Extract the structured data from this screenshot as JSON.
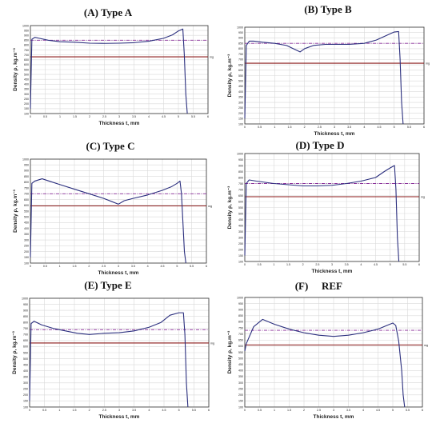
{
  "colors": {
    "profile": "#2b2f7e",
    "mean": "#8a2f9a",
    "reference": "#8b1a1a",
    "grid": "#d9d9d9",
    "frame": "#444444"
  },
  "chart_data": [
    {
      "type": "line",
      "title": "(A) Type A",
      "xlabel": "Thickness t, mm",
      "ylabel": "Density ρ, kg.m⁻³",
      "xlim": [
        0,
        6
      ],
      "ylim": [
        100,
        1000
      ],
      "x_ticks": [
        "0",
        "0.5",
        "1",
        "1.5",
        "2",
        "2.5",
        "3",
        "3.5",
        "4",
        "4.5",
        "5",
        "5.5",
        "6"
      ],
      "y_ticks": [
        "100",
        "150",
        "200",
        "250",
        "300",
        "350",
        "400",
        "450",
        "500",
        "550",
        "600",
        "650",
        "700",
        "750",
        "800",
        "850",
        "900",
        "950",
        "1000"
      ],
      "mean_line": 850,
      "reference_line": 680,
      "reference_label": "mg",
      "series": [
        {
          "x": [
            0,
            0.05,
            0.15,
            0.3,
            0.6,
            1.0,
            1.5,
            2.0,
            2.5,
            3.0,
            3.5,
            4.0,
            4.5,
            4.8,
            5.0,
            5.15,
            5.2,
            5.25,
            5.3
          ],
          "y": [
            150,
            860,
            880,
            870,
            850,
            835,
            830,
            820,
            818,
            820,
            825,
            840,
            870,
            905,
            945,
            965,
            700,
            300,
            100
          ]
        }
      ]
    },
    {
      "type": "line",
      "title": "(B) Type B",
      "xlabel": "Thickness t, mm",
      "ylabel": "Density ρ, kg.m⁻³",
      "xlim": [
        0,
        6
      ],
      "ylim": [
        100,
        1000
      ],
      "x_ticks": [
        "0",
        "0.5",
        "1",
        "1.5",
        "2",
        "2.5",
        "3",
        "3.5",
        "4",
        "4.5",
        "5",
        "5.5",
        "6"
      ],
      "y_ticks": [
        "100",
        "150",
        "200",
        "250",
        "300",
        "350",
        "400",
        "450",
        "500",
        "550",
        "600",
        "650",
        "700",
        "750",
        "800",
        "850",
        "900",
        "950",
        "1000"
      ],
      "mean_line": 850,
      "reference_line": 665,
      "reference_label": "mg",
      "series": [
        {
          "x": [
            0,
            0.05,
            0.15,
            0.3,
            0.6,
            1.0,
            1.4,
            1.7,
            1.85,
            2.0,
            2.3,
            2.7,
            3.0,
            3.5,
            4.0,
            4.4,
            4.8,
            5.0,
            5.15,
            5.2,
            5.25,
            5.3
          ],
          "y": [
            150,
            830,
            870,
            870,
            860,
            850,
            830,
            790,
            770,
            800,
            830,
            840,
            840,
            840,
            850,
            880,
            930,
            955,
            960,
            700,
            300,
            100
          ]
        }
      ]
    },
    {
      "type": "line",
      "title": "(C) Type C",
      "xlabel": "Thickness t, mm",
      "ylabel": "Density ρ, kg.m⁻³",
      "xlim": [
        0,
        6
      ],
      "ylim": [
        100,
        1000
      ],
      "x_ticks": [
        "0",
        "0.5",
        "1",
        "1.5",
        "2",
        "2.5",
        "3",
        "3.5",
        "4",
        "4.5",
        "5",
        "5.5",
        "6"
      ],
      "y_ticks": [
        "100",
        "150",
        "200",
        "250",
        "300",
        "350",
        "400",
        "450",
        "500",
        "550",
        "600",
        "650",
        "700",
        "750",
        "800",
        "850",
        "900",
        "950",
        "1000"
      ],
      "mean_line": 700,
      "reference_line": 595,
      "reference_label": "mg",
      "series": [
        {
          "x": [
            0,
            0.05,
            0.15,
            0.4,
            0.7,
            1.0,
            1.5,
            2.0,
            2.5,
            2.8,
            3.0,
            3.2,
            3.5,
            4.0,
            4.5,
            4.8,
            5.0,
            5.1,
            5.15,
            5.2,
            5.25,
            5.3
          ],
          "y": [
            150,
            790,
            810,
            830,
            805,
            780,
            740,
            700,
            660,
            630,
            610,
            640,
            660,
            690,
            730,
            760,
            790,
            810,
            700,
            450,
            200,
            100
          ]
        }
      ]
    },
    {
      "type": "line",
      "title": "(D) Type D",
      "xlabel": "Thickness t, mm",
      "ylabel": "Density ρ, kg.m⁻³",
      "xlim": [
        0,
        6
      ],
      "ylim": [
        100,
        1000
      ],
      "x_ticks": [
        "0",
        "0.5",
        "1",
        "1.5",
        "2",
        "2.5",
        "3",
        "3.5",
        "4",
        "4.5",
        "5",
        "5.5",
        "6"
      ],
      "y_ticks": [
        "100",
        "150",
        "200",
        "250",
        "300",
        "350",
        "400",
        "450",
        "500",
        "550",
        "600",
        "650",
        "700",
        "750",
        "800",
        "850",
        "900",
        "950",
        "1000"
      ],
      "mean_line": 750,
      "reference_line": 640,
      "reference_label": "mg",
      "series": [
        {
          "x": [
            0,
            0.05,
            0.15,
            0.4,
            1.0,
            1.5,
            2.0,
            2.5,
            3.0,
            3.5,
            4.0,
            4.5,
            4.8,
            5.0,
            5.15,
            5.2,
            5.25,
            5.3
          ],
          "y": [
            150,
            750,
            780,
            770,
            750,
            740,
            730,
            730,
            735,
            750,
            770,
            800,
            850,
            880,
            900,
            700,
            300,
            100
          ]
        }
      ]
    },
    {
      "type": "line",
      "title": "(E) Type E",
      "xlabel": "Thickness t, mm",
      "ylabel": "Density ρ, kg.m⁻³",
      "xlim": [
        0,
        6
      ],
      "ylim": [
        100,
        1000
      ],
      "x_ticks": [
        "0",
        "0.5",
        "1",
        "1.5",
        "2",
        "2.5",
        "3",
        "3.5",
        "4",
        "4.5",
        "5",
        "5.5",
        "6"
      ],
      "y_ticks": [
        "100",
        "150",
        "200",
        "250",
        "300",
        "350",
        "400",
        "450",
        "500",
        "550",
        "600",
        "650",
        "700",
        "750",
        "800",
        "850",
        "900",
        "950",
        "1000"
      ],
      "mean_line": 740,
      "reference_line": 630,
      "reference_label": "mg",
      "series": [
        {
          "x": [
            0,
            0.05,
            0.15,
            0.4,
            0.8,
            1.2,
            1.6,
            2.0,
            2.5,
            3.0,
            3.5,
            4.0,
            4.4,
            4.7,
            5.0,
            5.15,
            5.2,
            5.25,
            5.3
          ],
          "y": [
            150,
            790,
            810,
            780,
            750,
            730,
            710,
            700,
            710,
            715,
            730,
            760,
            800,
            860,
            880,
            880,
            700,
            300,
            100
          ]
        }
      ]
    },
    {
      "type": "line",
      "title": "REF",
      "panel_label": "(F)",
      "xlabel": "Thickness t, mm",
      "ylabel": "Density ρ, kg.m⁻³",
      "xlim": [
        0,
        6
      ],
      "ylim": [
        100,
        1000
      ],
      "x_ticks": [
        "0",
        "0.5",
        "1",
        "1.5",
        "2",
        "2.5",
        "3",
        "3.5",
        "4",
        "4.5",
        "5",
        "5.5",
        "6"
      ],
      "y_ticks": [
        "100",
        "150",
        "200",
        "250",
        "300",
        "350",
        "400",
        "450",
        "500",
        "550",
        "600",
        "650",
        "700",
        "750",
        "800",
        "850",
        "900",
        "950",
        "1000"
      ],
      "mean_line": 730,
      "reference_line": 610,
      "reference_label": "mg",
      "series": [
        {
          "x": [
            0,
            0.05,
            0.3,
            0.6,
            1.0,
            1.5,
            2.0,
            2.5,
            3.0,
            3.5,
            4.0,
            4.5,
            4.8,
            5.0,
            5.1,
            5.2,
            5.3,
            5.35,
            5.4
          ],
          "y": [
            560,
            620,
            760,
            820,
            780,
            740,
            710,
            690,
            680,
            690,
            710,
            740,
            770,
            790,
            770,
            640,
            400,
            200,
            100
          ]
        }
      ]
    }
  ]
}
